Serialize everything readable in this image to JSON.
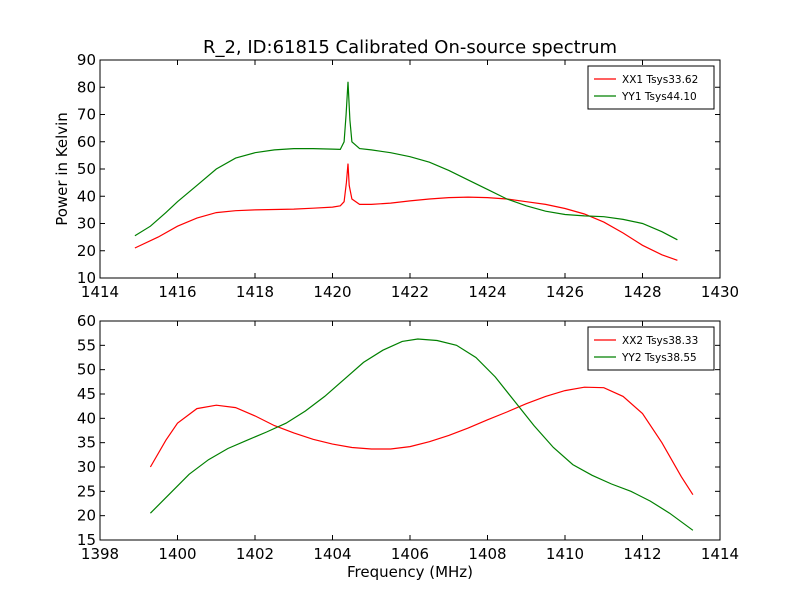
{
  "figure": {
    "title": "R_2, ID:61815 Calibrated On-source spectrum",
    "ylabel": "Power in Kelvin",
    "xlabel": "Frequency (MHz)"
  },
  "chart_data": [
    {
      "type": "line",
      "xlim": [
        1414,
        1430
      ],
      "ylim": [
        10,
        90
      ],
      "xticks": [
        1414,
        1416,
        1418,
        1420,
        1422,
        1424,
        1426,
        1428,
        1430
      ],
      "yticks": [
        10,
        20,
        30,
        40,
        50,
        60,
        70,
        80,
        90
      ],
      "grid": false,
      "legend_position": "top-right",
      "series": [
        {
          "name": "XX1 Tsys33.62",
          "color": "#ff0000",
          "points": [
            [
              1414.9,
              21
            ],
            [
              1415.5,
              25
            ],
            [
              1416,
              29
            ],
            [
              1416.5,
              32
            ],
            [
              1417,
              34
            ],
            [
              1417.5,
              34.7
            ],
            [
              1418,
              35
            ],
            [
              1419,
              35.3
            ],
            [
              1419.5,
              35.6
            ],
            [
              1420,
              36
            ],
            [
              1420.2,
              36.5
            ],
            [
              1420.3,
              38
            ],
            [
              1420.36,
              45
            ],
            [
              1420.4,
              52
            ],
            [
              1420.43,
              44
            ],
            [
              1420.5,
              39
            ],
            [
              1420.7,
              37
            ],
            [
              1421,
              37
            ],
            [
              1421.5,
              37.5
            ],
            [
              1422,
              38.3
            ],
            [
              1422.5,
              39
            ],
            [
              1423,
              39.5
            ],
            [
              1423.5,
              39.7
            ],
            [
              1424,
              39.5
            ],
            [
              1424.5,
              39
            ],
            [
              1425,
              38
            ],
            [
              1425.5,
              37
            ],
            [
              1426,
              35.5
            ],
            [
              1426.5,
              33.5
            ],
            [
              1427,
              30.5
            ],
            [
              1427.5,
              26.5
            ],
            [
              1428,
              22
            ],
            [
              1428.5,
              18.5
            ],
            [
              1428.9,
              16.5
            ]
          ]
        },
        {
          "name": "YY1 Tsys44.10",
          "color": "#008000",
          "points": [
            [
              1414.9,
              25.5
            ],
            [
              1415.3,
              29
            ],
            [
              1415.7,
              34
            ],
            [
              1416,
              38
            ],
            [
              1416.5,
              44
            ],
            [
              1417,
              50
            ],
            [
              1417.5,
              54
            ],
            [
              1418,
              56
            ],
            [
              1418.5,
              57
            ],
            [
              1419,
              57.5
            ],
            [
              1419.5,
              57.5
            ],
            [
              1420,
              57.3
            ],
            [
              1420.2,
              57.2
            ],
            [
              1420.3,
              60
            ],
            [
              1420.35,
              70
            ],
            [
              1420.4,
              82
            ],
            [
              1420.45,
              68
            ],
            [
              1420.5,
              60
            ],
            [
              1420.7,
              57.5
            ],
            [
              1421,
              57
            ],
            [
              1421.5,
              56
            ],
            [
              1422,
              54.5
            ],
            [
              1422.5,
              52.5
            ],
            [
              1423,
              49.5
            ],
            [
              1423.5,
              46
            ],
            [
              1424,
              42.5
            ],
            [
              1424.5,
              39
            ],
            [
              1425,
              36.5
            ],
            [
              1425.5,
              34.5
            ],
            [
              1426,
              33.3
            ],
            [
              1426.5,
              32.8
            ],
            [
              1427,
              32.5
            ],
            [
              1427.5,
              31.5
            ],
            [
              1428,
              30
            ],
            [
              1428.5,
              27
            ],
            [
              1428.9,
              24
            ]
          ]
        }
      ]
    },
    {
      "type": "line",
      "xlim": [
        1398,
        1414
      ],
      "ylim": [
        15,
        60
      ],
      "xticks": [
        1398,
        1400,
        1402,
        1404,
        1406,
        1408,
        1410,
        1412,
        1414
      ],
      "yticks": [
        15,
        20,
        25,
        30,
        35,
        40,
        45,
        50,
        55,
        60
      ],
      "grid": false,
      "legend_position": "top-right",
      "series": [
        {
          "name": "XX2 Tsys38.33",
          "color": "#ff0000",
          "points": [
            [
              1399.3,
              30
            ],
            [
              1399.7,
              35.5
            ],
            [
              1400,
              39
            ],
            [
              1400.5,
              42
            ],
            [
              1401,
              42.7
            ],
            [
              1401.5,
              42.2
            ],
            [
              1402,
              40.5
            ],
            [
              1402.5,
              38.5
            ],
            [
              1403,
              37
            ],
            [
              1403.5,
              35.7
            ],
            [
              1404,
              34.7
            ],
            [
              1404.5,
              34
            ],
            [
              1405,
              33.7
            ],
            [
              1405.5,
              33.7
            ],
            [
              1406,
              34.2
            ],
            [
              1406.5,
              35.2
            ],
            [
              1407,
              36.5
            ],
            [
              1407.5,
              38
            ],
            [
              1408,
              39.7
            ],
            [
              1408.5,
              41.3
            ],
            [
              1409,
              43
            ],
            [
              1409.5,
              44.5
            ],
            [
              1410,
              45.7
            ],
            [
              1410.5,
              46.4
            ],
            [
              1411,
              46.3
            ],
            [
              1411.5,
              44.5
            ],
            [
              1412,
              41
            ],
            [
              1412.5,
              35
            ],
            [
              1413,
              28
            ],
            [
              1413.3,
              24.3
            ]
          ]
        },
        {
          "name": "YY2 Tsys38.55",
          "color": "#008000",
          "points": [
            [
              1399.3,
              20.5
            ],
            [
              1399.8,
              24.5
            ],
            [
              1400.3,
              28.5
            ],
            [
              1400.8,
              31.5
            ],
            [
              1401.3,
              33.8
            ],
            [
              1401.8,
              35.5
            ],
            [
              1402.3,
              37.2
            ],
            [
              1402.8,
              39
            ],
            [
              1403.3,
              41.5
            ],
            [
              1403.8,
              44.5
            ],
            [
              1404.3,
              48
            ],
            [
              1404.8,
              51.5
            ],
            [
              1405.3,
              54
            ],
            [
              1405.8,
              55.8
            ],
            [
              1406.2,
              56.3
            ],
            [
              1406.7,
              56
            ],
            [
              1407.2,
              55
            ],
            [
              1407.7,
              52.5
            ],
            [
              1408.2,
              48.5
            ],
            [
              1408.7,
              43.5
            ],
            [
              1409.2,
              38.5
            ],
            [
              1409.7,
              34
            ],
            [
              1410.2,
              30.5
            ],
            [
              1410.7,
              28.3
            ],
            [
              1411.2,
              26.5
            ],
            [
              1411.7,
              25
            ],
            [
              1412.2,
              23
            ],
            [
              1412.7,
              20.5
            ],
            [
              1413.3,
              17
            ]
          ]
        }
      ]
    }
  ]
}
